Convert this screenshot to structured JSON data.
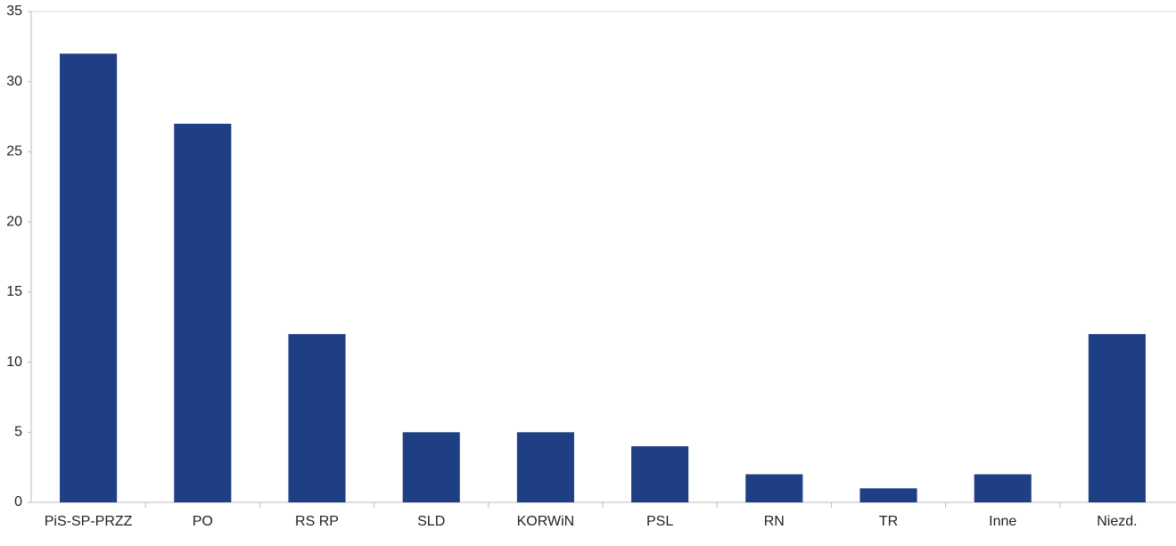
{
  "chart_data": {
    "type": "bar",
    "categories": [
      "PiS-SP-PRZZ",
      "PO",
      "RS RP",
      "SLD",
      "KORWiN",
      "PSL",
      "RN",
      "TR",
      "Inne",
      "Niezd."
    ],
    "values": [
      32,
      27,
      12,
      5,
      5,
      4,
      2,
      1,
      2,
      12
    ],
    "color": "#1f3f84",
    "ylim": [
      0,
      35
    ],
    "yticks": [
      0,
      5,
      10,
      15,
      20,
      25,
      30,
      35
    ],
    "grid": false
  }
}
